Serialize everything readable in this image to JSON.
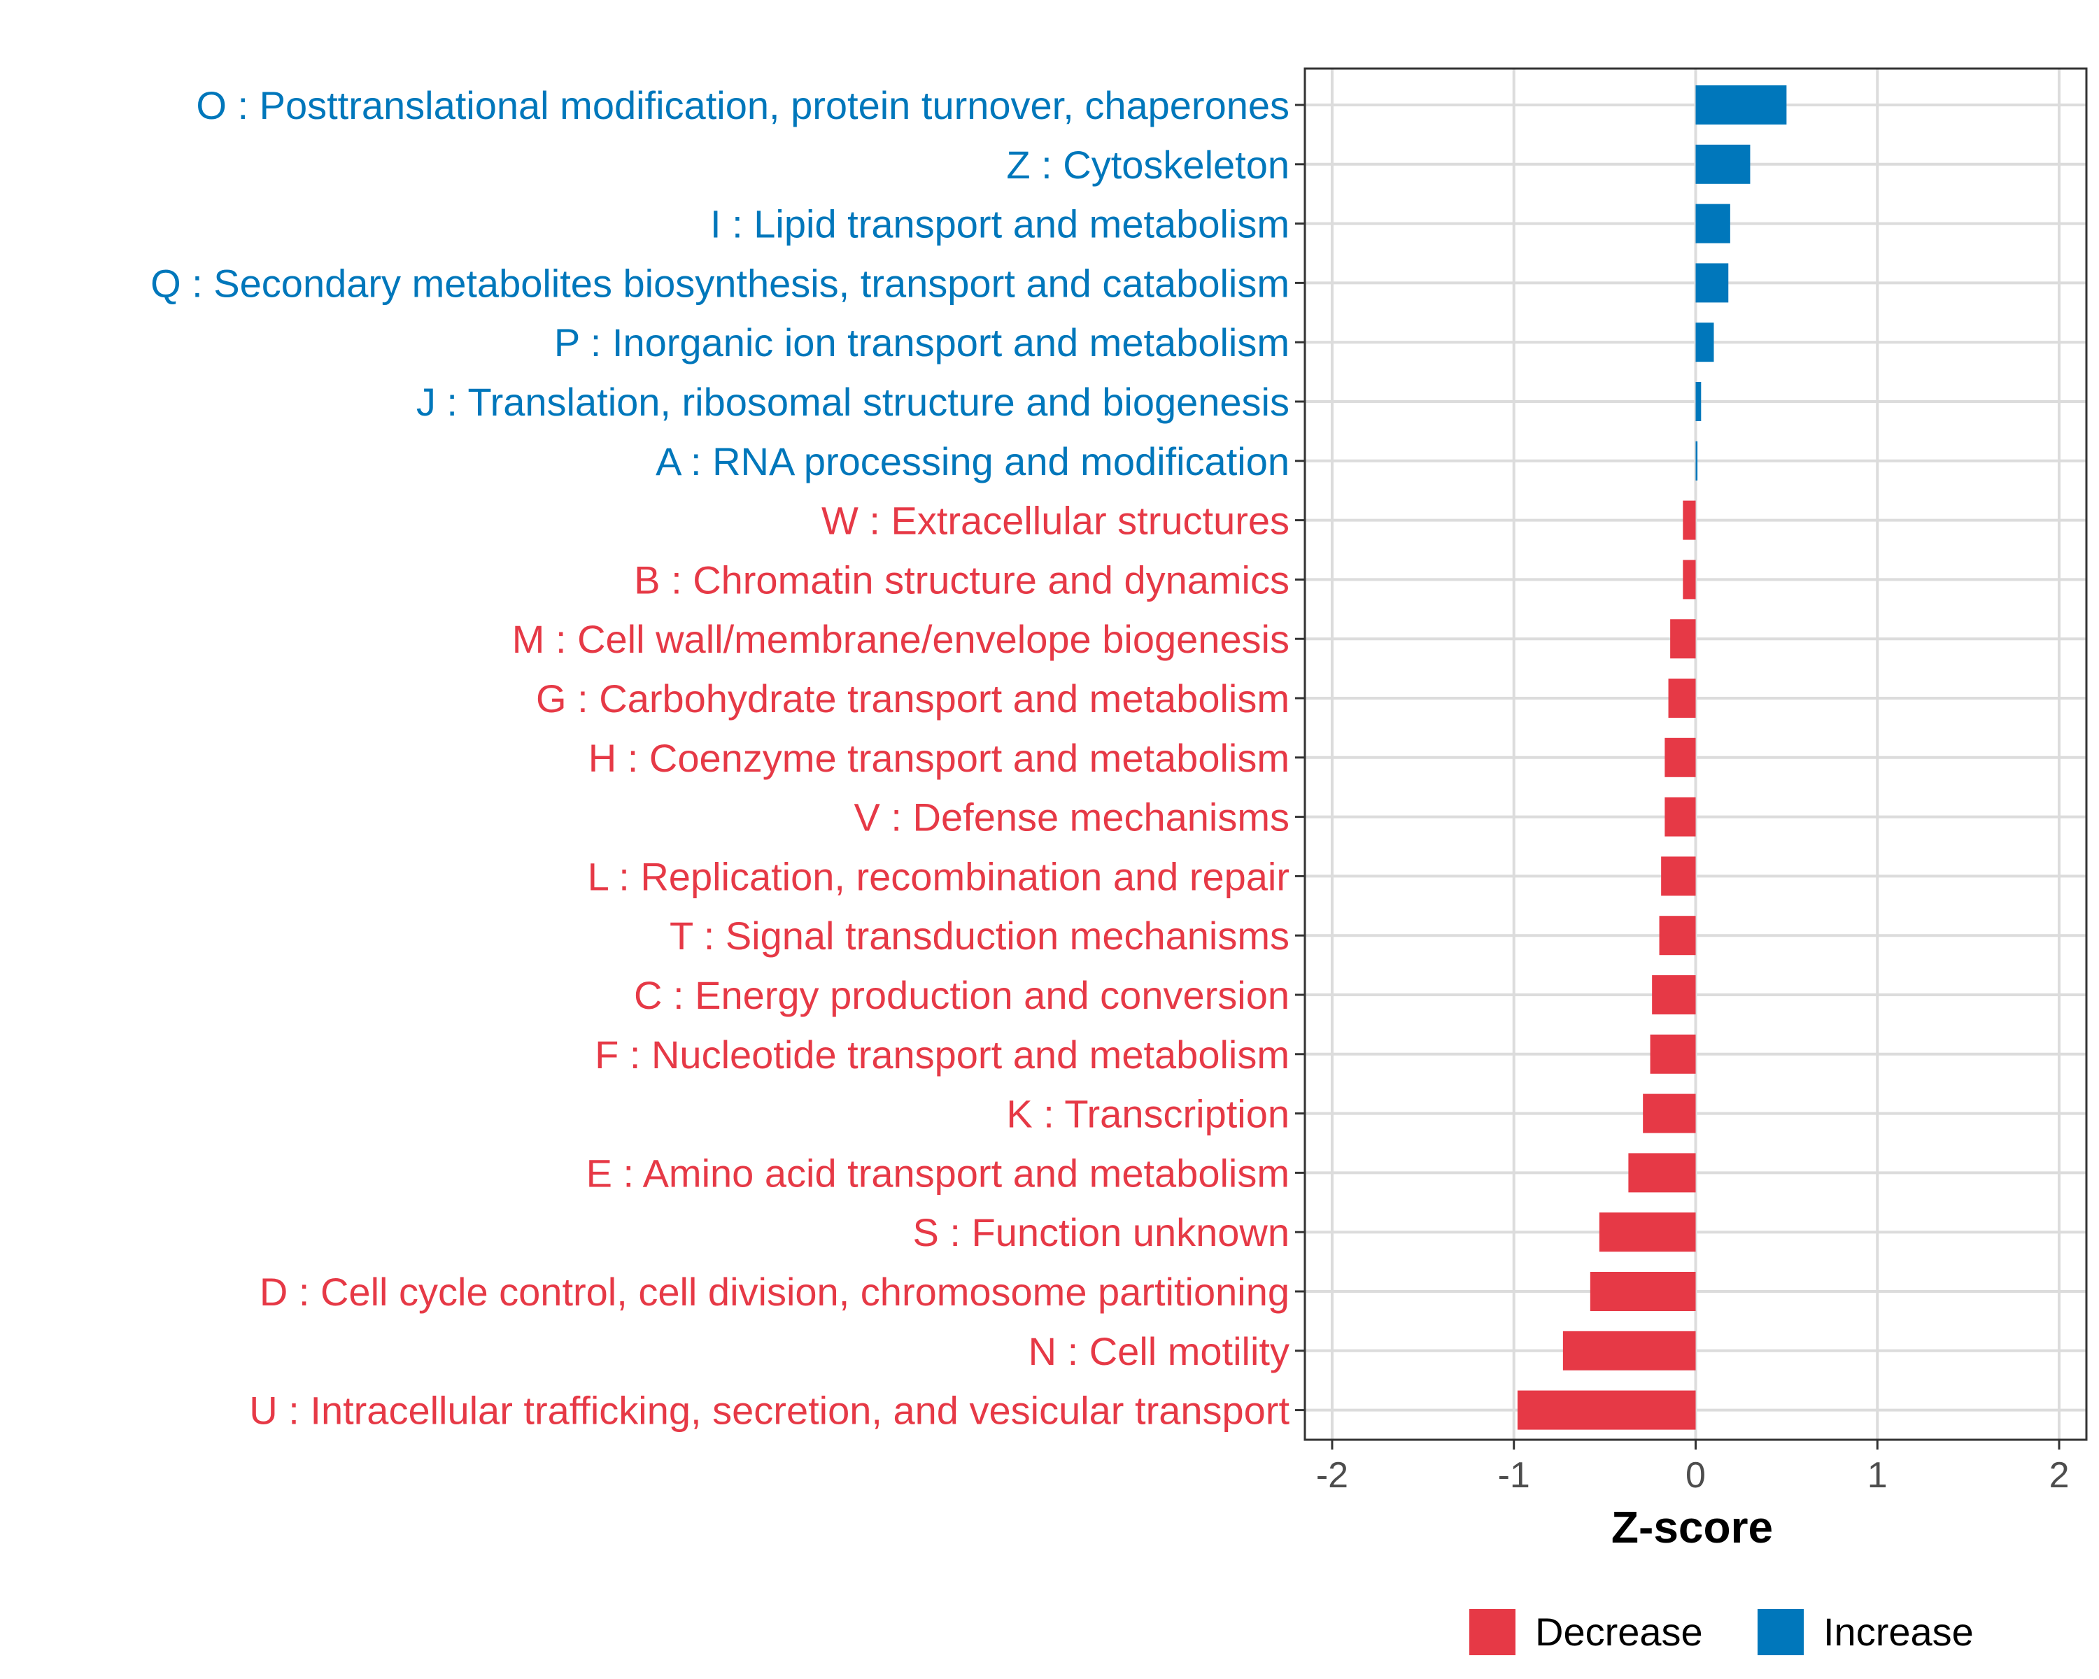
{
  "chart_data": {
    "type": "bar",
    "orientation": "horizontal",
    "title": "",
    "xlabel": "Z-score",
    "ylabel": "",
    "xlim": [
      -2.15,
      2.15
    ],
    "xticks": [
      -2,
      -1,
      0,
      1,
      2
    ],
    "xtick_labels": [
      "-2",
      "-1",
      "0",
      "1",
      "2"
    ],
    "grid": true,
    "legend_position": "bottom",
    "colors": {
      "Decrease": "#e63946",
      "Increase": "#0077bb"
    },
    "legend": [
      {
        "label": "Decrease",
        "color": "#e63946"
      },
      {
        "label": "Increase",
        "color": "#0077bb"
      }
    ],
    "bars": [
      {
        "label": "O : Posttranslational modification, protein turnover, chaperones",
        "value": 0.5,
        "group": "Increase"
      },
      {
        "label": "Z : Cytoskeleton",
        "value": 0.3,
        "group": "Increase"
      },
      {
        "label": "I : Lipid transport and metabolism",
        "value": 0.19,
        "group": "Increase"
      },
      {
        "label": "Q : Secondary metabolites biosynthesis, transport and catabolism",
        "value": 0.18,
        "group": "Increase"
      },
      {
        "label": "P : Inorganic ion transport and metabolism",
        "value": 0.1,
        "group": "Increase"
      },
      {
        "label": "J : Translation, ribosomal structure and biogenesis",
        "value": 0.03,
        "group": "Increase"
      },
      {
        "label": "A : RNA processing and modification",
        "value": 0.01,
        "group": "Increase"
      },
      {
        "label": "W : Extracellular structures",
        "value": -0.07,
        "group": "Decrease"
      },
      {
        "label": "B : Chromatin structure and dynamics",
        "value": -0.07,
        "group": "Decrease"
      },
      {
        "label": "M : Cell wall/membrane/envelope biogenesis",
        "value": -0.14,
        "group": "Decrease"
      },
      {
        "label": "G : Carbohydrate transport and metabolism",
        "value": -0.15,
        "group": "Decrease"
      },
      {
        "label": "H : Coenzyme transport and metabolism",
        "value": -0.17,
        "group": "Decrease"
      },
      {
        "label": "V : Defense mechanisms",
        "value": -0.17,
        "group": "Decrease"
      },
      {
        "label": "L : Replication, recombination and repair",
        "value": -0.19,
        "group": "Decrease"
      },
      {
        "label": "T : Signal transduction mechanisms",
        "value": -0.2,
        "group": "Decrease"
      },
      {
        "label": "C : Energy production and conversion",
        "value": -0.24,
        "group": "Decrease"
      },
      {
        "label": "F : Nucleotide transport and metabolism",
        "value": -0.25,
        "group": "Decrease"
      },
      {
        "label": "K : Transcription",
        "value": -0.29,
        "group": "Decrease"
      },
      {
        "label": "E : Amino acid transport and metabolism",
        "value": -0.37,
        "group": "Decrease"
      },
      {
        "label": "S : Function unknown",
        "value": -0.53,
        "group": "Decrease"
      },
      {
        "label": "D : Cell cycle control, cell division, chromosome partitioning",
        "value": -0.58,
        "group": "Decrease"
      },
      {
        "label": "N : Cell motility",
        "value": -0.73,
        "group": "Decrease"
      },
      {
        "label": "U : Intracellular trafficking, secretion, and vesicular transport",
        "value": -0.98,
        "group": "Decrease"
      }
    ]
  }
}
